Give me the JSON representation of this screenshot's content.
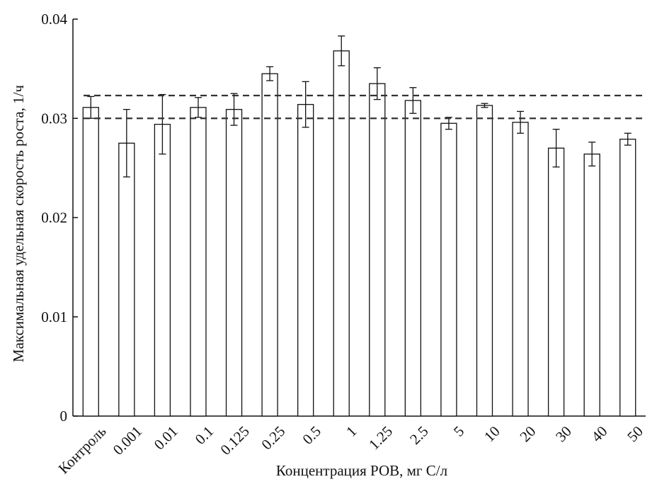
{
  "chart_data": {
    "type": "bar",
    "title": "",
    "xlabel": "Концентрация РОВ, мг С/л",
    "ylabel": "Максимальная удельная скорость роста, 1/ч",
    "ylim": [
      0,
      0.04
    ],
    "yticks": [
      "0",
      "0.01",
      "0.02",
      "0.03",
      "0.04"
    ],
    "ytick_values": [
      0,
      0.01,
      0.02,
      0.03,
      0.04
    ],
    "grid": false,
    "categories": [
      "Контроль",
      "0.001",
      "0.01",
      "0.1",
      "0.125",
      "0.25",
      "0.5",
      "1",
      "1.25",
      "2.5",
      "5",
      "10",
      "20",
      "30",
      "40",
      "50"
    ],
    "values": [
      0.0311,
      0.0275,
      0.0294,
      0.0311,
      0.0309,
      0.0345,
      0.0314,
      0.0368,
      0.0335,
      0.0318,
      0.0295,
      0.0313,
      0.0296,
      0.027,
      0.0264,
      0.0279
    ],
    "errors": [
      0.0011,
      0.0034,
      0.003,
      0.001,
      0.0016,
      0.0007,
      0.0023,
      0.0015,
      0.0016,
      0.0013,
      0.0006,
      0.0002,
      0.0011,
      0.0019,
      0.0012,
      0.0006
    ],
    "reference_lines": [
      0.0323,
      0.03
    ],
    "colors": {
      "bar_fill": "#ffffff",
      "stroke": "#111111",
      "reference_line": "#333333"
    }
  }
}
